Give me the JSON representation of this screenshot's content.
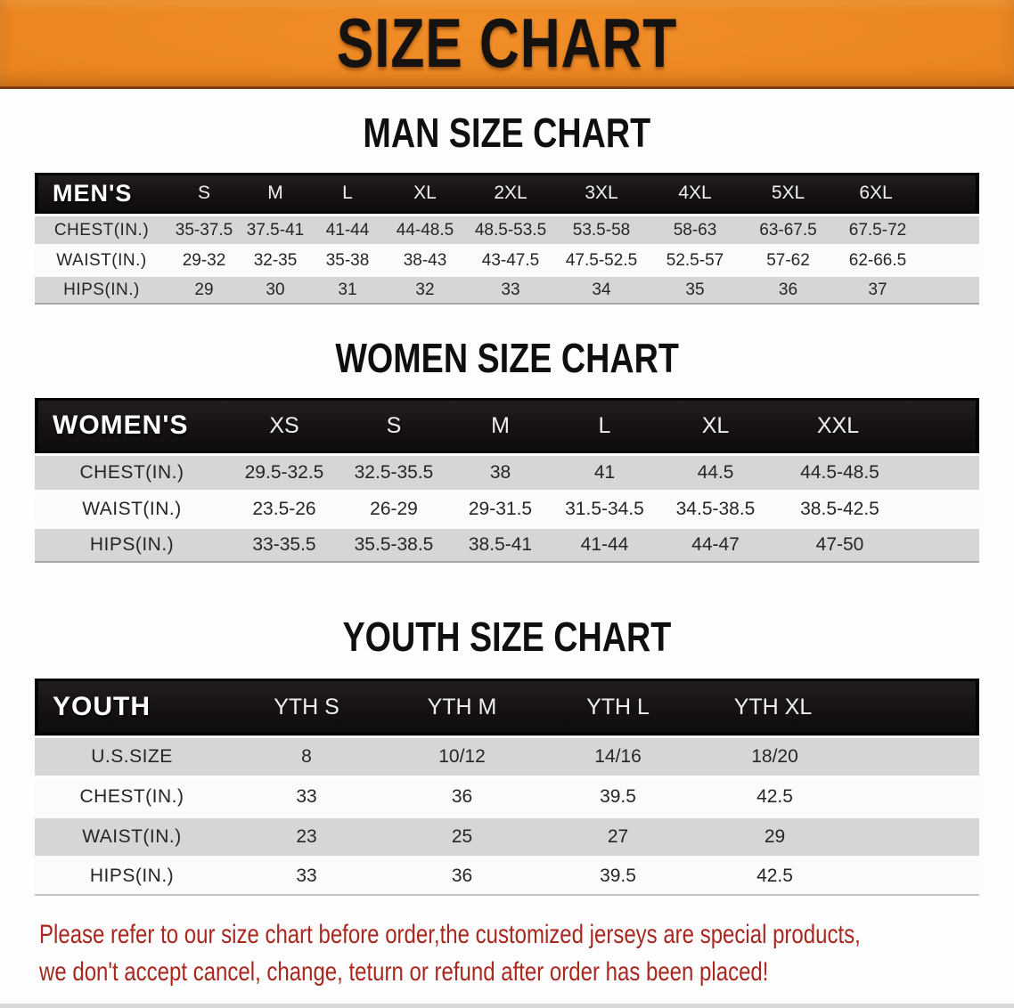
{
  "banner": {
    "title": "SIZE CHART"
  },
  "sections": [
    {
      "title": "MAN SIZE CHART",
      "group_label": "MEN'S",
      "columns": [
        "S",
        "M",
        "L",
        "XL",
        "2XL",
        "3XL",
        "4XL",
        "5XL",
        "6XL"
      ],
      "rows": [
        {
          "label": "CHEST(IN.)",
          "values": [
            "35-37.5",
            "37.5-41",
            "41-44",
            "44-48.5",
            "48.5-53.5",
            "53.5-58",
            "58-63",
            "63-67.5",
            "67.5-72"
          ]
        },
        {
          "label": "WAIST(IN.)",
          "values": [
            "29-32",
            "32-35",
            "35-38",
            "38-43",
            "43-47.5",
            "47.5-52.5",
            "52.5-57",
            "57-62",
            "62-66.5"
          ]
        },
        {
          "label": "HIPS(IN.)",
          "values": [
            "29",
            "30",
            "31",
            "32",
            "33",
            "34",
            "35",
            "36",
            "37"
          ]
        }
      ]
    },
    {
      "title": "WOMEN SIZE CHART",
      "group_label": "WOMEN'S",
      "columns": [
        "XS",
        "S",
        "M",
        "L",
        "XL",
        "XXL"
      ],
      "rows": [
        {
          "label": "CHEST(IN.)",
          "values": [
            "29.5-32.5",
            "32.5-35.5",
            "38",
            "41",
            "44.5",
            "44.5-48.5"
          ]
        },
        {
          "label": "WAIST(IN.)",
          "values": [
            "23.5-26",
            "26-29",
            "29-31.5",
            "31.5-34.5",
            "34.5-38.5",
            "38.5-42.5"
          ]
        },
        {
          "label": "HIPS(IN.)",
          "values": [
            "33-35.5",
            "35.5-38.5",
            "38.5-41",
            "41-44",
            "44-47",
            "47-50"
          ]
        }
      ]
    },
    {
      "title": "YOUTH SIZE CHART",
      "group_label": "YOUTH",
      "columns": [
        "YTH S",
        "YTH M",
        "YTH L",
        "YTH XL"
      ],
      "rows": [
        {
          "label": "U.S.SIZE",
          "values": [
            "8",
            "10/12",
            "14/16",
            "18/20"
          ]
        },
        {
          "label": "CHEST(IN.)",
          "values": [
            "33",
            "36",
            "39.5",
            "42.5"
          ]
        },
        {
          "label": "WAIST(IN.)",
          "values": [
            "23",
            "25",
            "27",
            "29"
          ]
        },
        {
          "label": "HIPS(IN.)",
          "values": [
            "33",
            "36",
            "39.5",
            "42.5"
          ]
        }
      ]
    }
  ],
  "disclaimer": {
    "line1": "Please refer to our size chart before order,the customized jerseys are special products,",
    "line2": "we don't accept cancel, change, teturn or refund after order has been placed!",
    "color": "#A8271E"
  },
  "colors": {
    "banner_orange": "#E8831F",
    "banner_edge": "#7D3C14",
    "header_bar_black": "#151111",
    "row_gray": "#D6D6D6",
    "row_white": "#FBFBFB",
    "disclaimer_red": "#A8271E"
  }
}
